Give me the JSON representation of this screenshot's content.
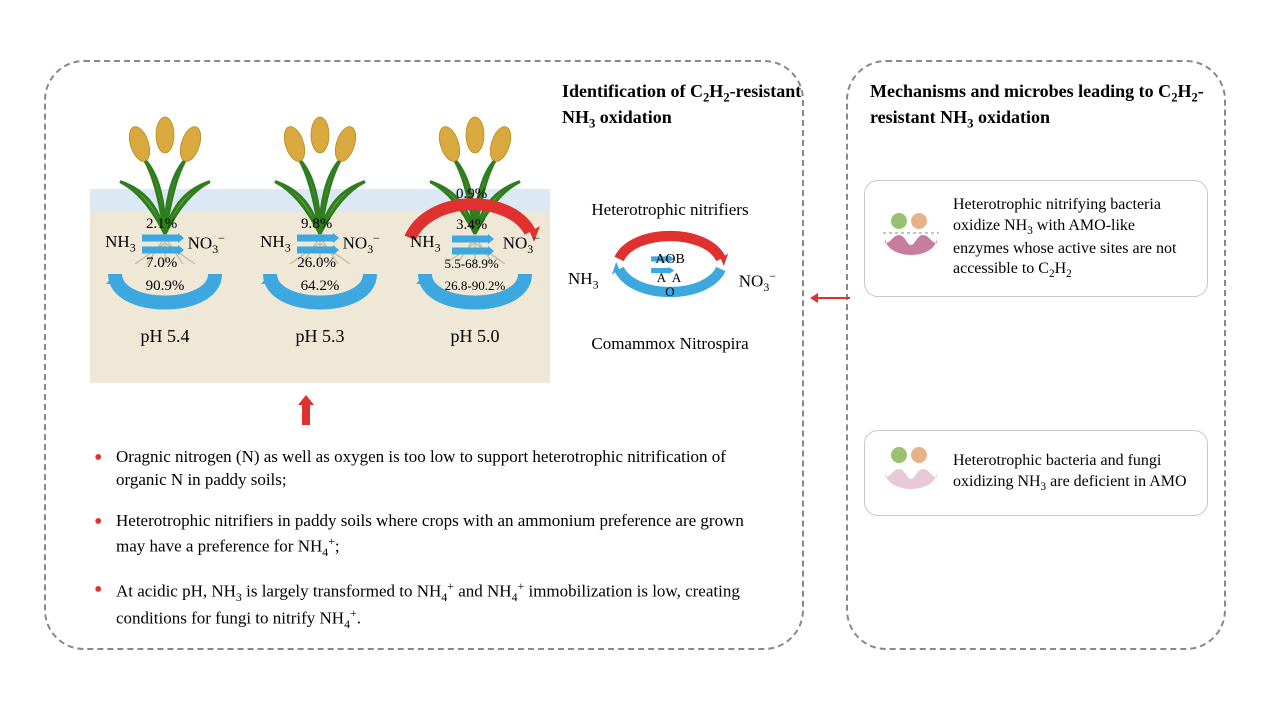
{
  "colors": {
    "dashed_border": "#888888",
    "sky": "#dde8f5",
    "soil": "#efe8d7",
    "blue_arrow": "#3da7e0",
    "red_arrow": "#e03030",
    "leaf": "#56a22d",
    "grain": "#d8a93c",
    "enzyme_active": "#c77da0",
    "enzyme_faded": "#e9c9d7",
    "ball_green": "#98c170",
    "ball_orange": "#e9b18a",
    "text": "#000000"
  },
  "left_panel": {
    "columns": [
      {
        "top_pct": "2.1%",
        "bottom_pct": "7.0%",
        "cycle_pct": "90.9%",
        "ph": "pH 5.4"
      },
      {
        "top_pct": "9.8%",
        "bottom_pct": "26.0%",
        "cycle_pct": "64.2%",
        "ph": "pH 5.3"
      },
      {
        "top_pct": "3.4%",
        "bottom_pct": "5.5-68.9%",
        "cycle_pct": "26.8-90.2%",
        "red_arc_pct": "0.9%",
        "ph": "pH 5.0"
      }
    ],
    "species_left": "NH₃",
    "species_right": "NO₃⁻",
    "ident_title": "Identification of C₂H₂-resistant NH₃ oxidation",
    "hetero_label": "Heterotrophic nitrifiers",
    "comammox_label": "Comammox Nitrospira",
    "nh3": "NH₃",
    "no3": "NO₃⁻",
    "aob": "AOB",
    "aoa_center": "A   A",
    "aoa_center2": "O",
    "bullets": [
      "Oragnic nitrogen (N) as well as oxygen is too low to support heterotrophic nitrification of organic N in paddy soils;",
      "Heterotrophic nitrifiers in paddy soils where crops with an ammonium preference are grown may have a preference for NH₄⁺;",
      "At acidic pH, NH₃ is  largely transformed to NH₄⁺ and NH₄⁺ immobilization is low, creating conditions for fungi to nitrify NH₄⁺."
    ]
  },
  "right_panel": {
    "title": "Mechanisms and microbes leading to C₂H₂-resistant NH₃ oxidation",
    "box1": "Heterotrophic nitrifying bacteria oxidize NH₃ with AMO-like enzymes whose active sites are not accessible to C₂H₂",
    "box2": "Heterotrophic bacteria and fungi oxidizing NH₃ are deficient in AMO"
  }
}
